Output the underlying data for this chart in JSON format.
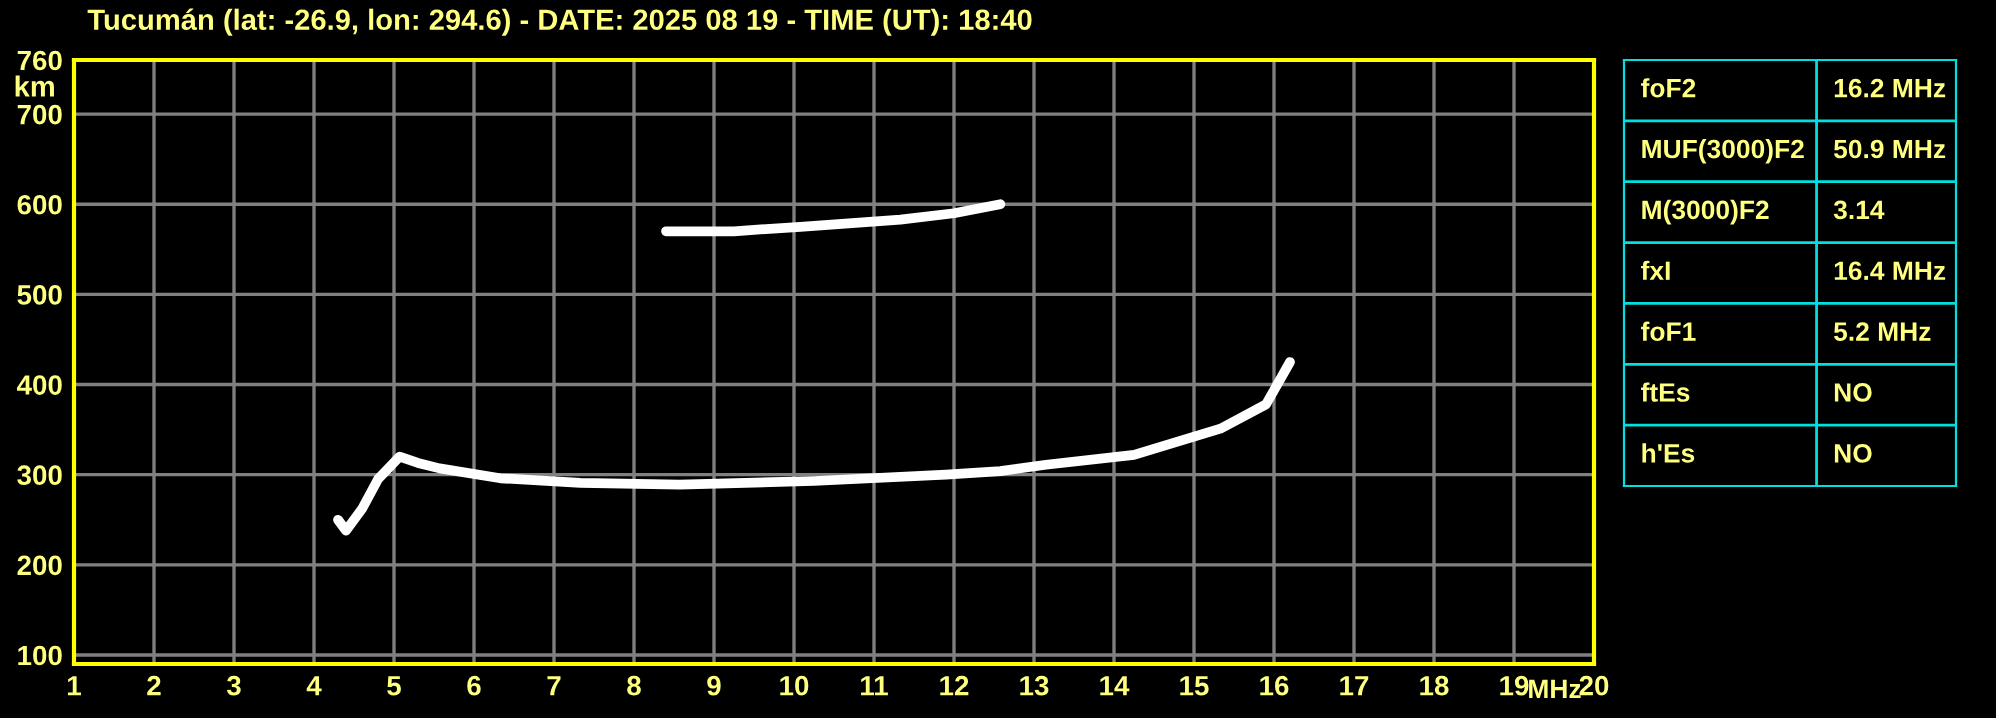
{
  "chart_data": [
    {
      "type": "line",
      "title": "Tucumán (lat: -26.9, lon: 294.6) - DATE: 2025 08 19 - TIME (UT): 18:40",
      "xlabel": "MHz",
      "ylabel": "km",
      "xlim": [
        1,
        20
      ],
      "ylim": [
        90,
        760
      ],
      "xticks": [
        1,
        2,
        3,
        4,
        5,
        6,
        7,
        8,
        9,
        10,
        11,
        12,
        13,
        14,
        15,
        16,
        17,
        18,
        19,
        20
      ],
      "yticks": [
        100,
        200,
        300,
        400,
        500,
        600,
        700,
        760
      ],
      "grid": true,
      "marker": "none",
      "line_style": "solid",
      "series": [
        {
          "color": "#ffffff",
          "x": [
            4.3,
            4.4,
            4.6,
            4.8,
            5.07,
            5.3,
            5.57,
            6.33,
            7.33,
            8.57,
            10.25,
            11.9,
            12.58,
            13.15,
            14.25,
            15.33,
            15.9,
            16.2
          ],
          "values": [
            250,
            238,
            262,
            295,
            320,
            313,
            307,
            296,
            291,
            289,
            293,
            300,
            304,
            311,
            322,
            351,
            378,
            425
          ]
        },
        {
          "color": "#ffffff",
          "x": [
            8.4,
            9.25,
            10.08,
            11.33,
            12.0,
            12.58
          ],
          "values": [
            570,
            570,
            575,
            583,
            590,
            600
          ]
        }
      ]
    },
    {
      "type": "other",
      "annotations": [
        "foF2",
        "16.2 MHz",
        "MUF(3000)F2",
        "50.9 MHz",
        "M(3000)F2",
        "3.14",
        "fxI",
        "16.4 MHz",
        "foF1",
        "5.2 MHz",
        "ftEs",
        "NO",
        "h'Es",
        "NO"
      ]
    }
  ]
}
